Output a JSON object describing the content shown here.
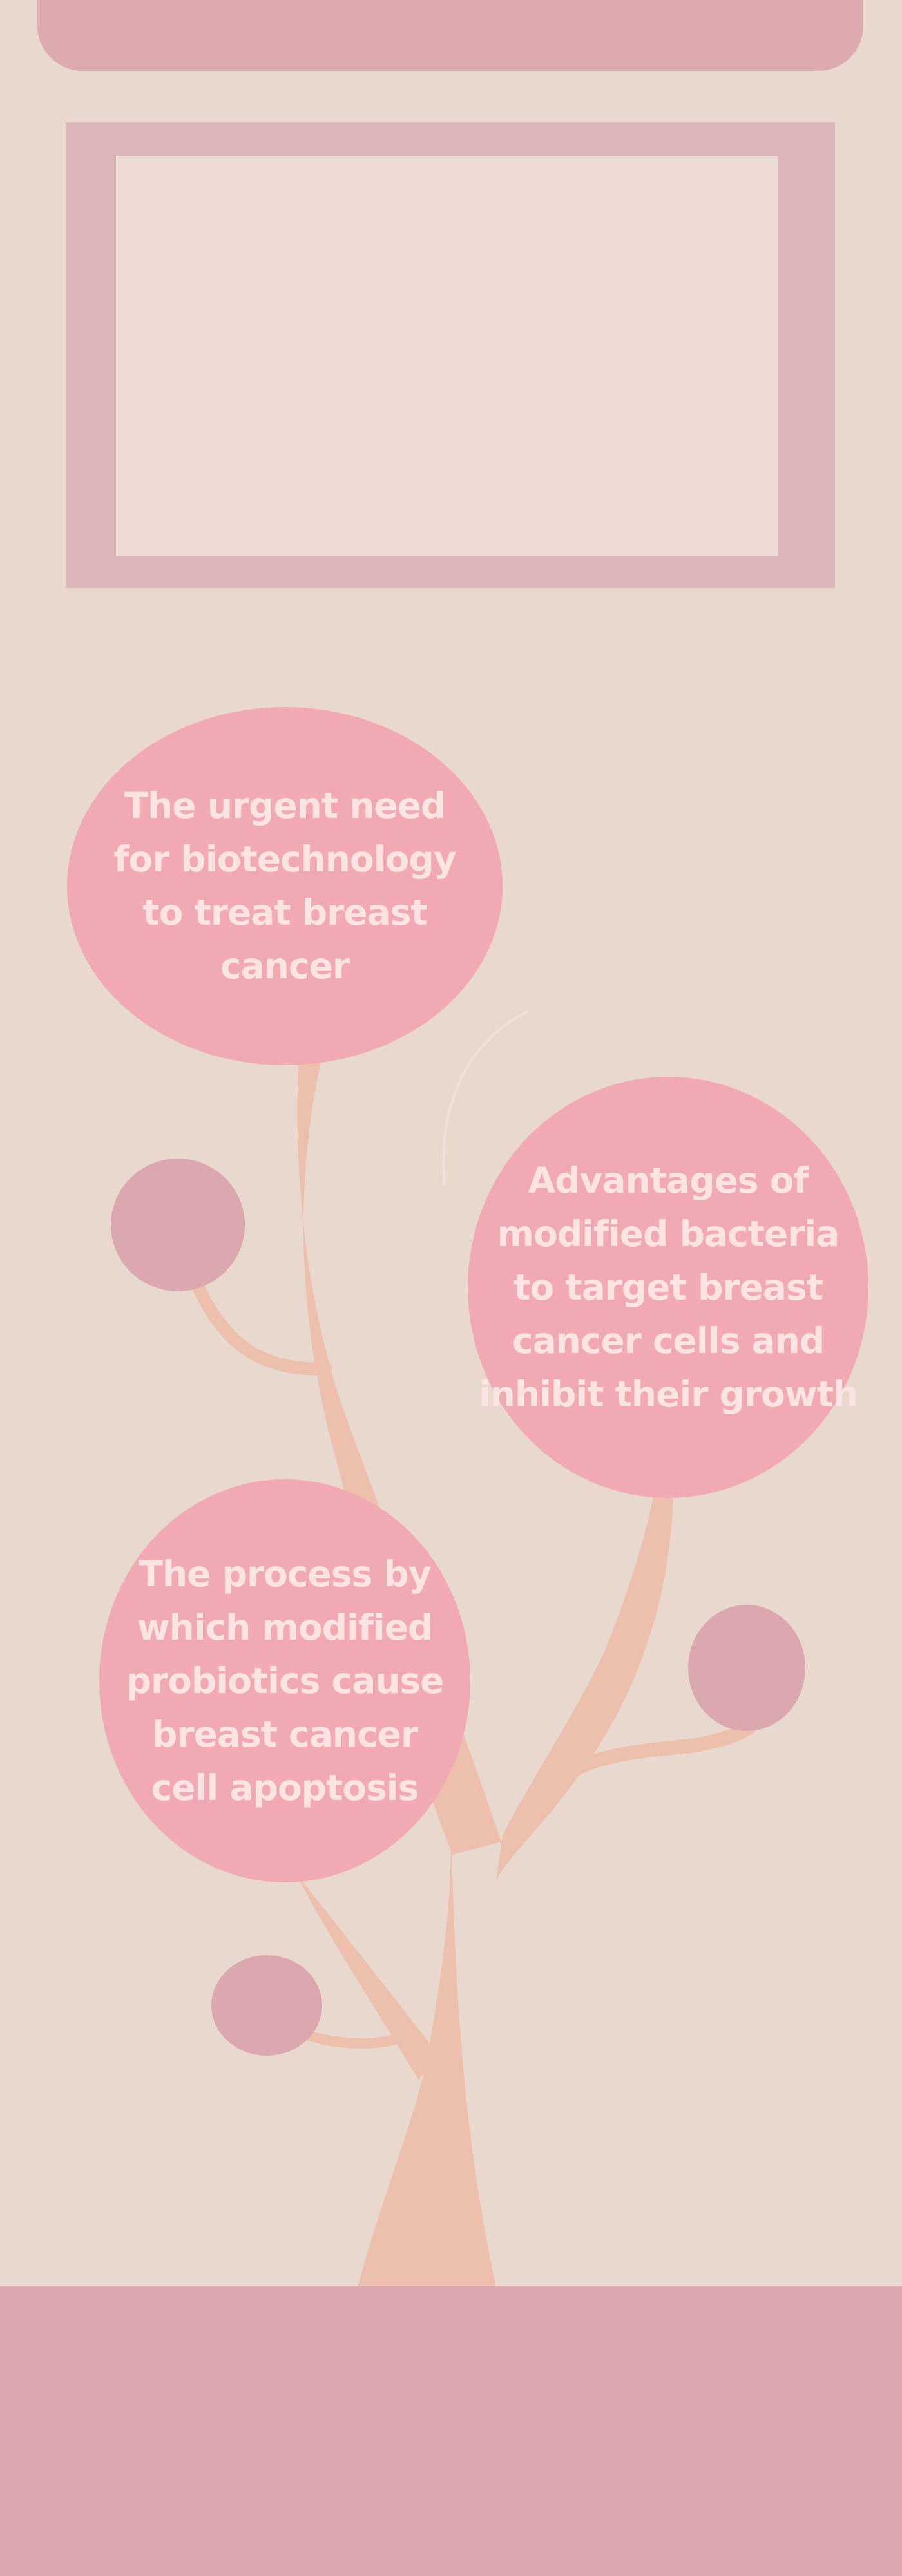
{
  "colors": {
    "background": "#e8d8ce",
    "banner": "#ddaab0",
    "frame_outer": "#ddb4b8",
    "frame_inner": "#efdbd6",
    "bubble": "#f1aab3",
    "bubble_text": "#fbe4e2",
    "trunk": "#ecc0ac",
    "fruit": "#dba8b0",
    "footer": "#dba8b0"
  },
  "bubbles": [
    {
      "text": "The urgent need for biotechnology to treat breast cancer"
    },
    {
      "text": "Advantages of modified bacteria to target breast cancer cells and inhibit their growth"
    },
    {
      "text": "The process by which modified probiotics cause breast cancer cell apoptosis"
    }
  ]
}
